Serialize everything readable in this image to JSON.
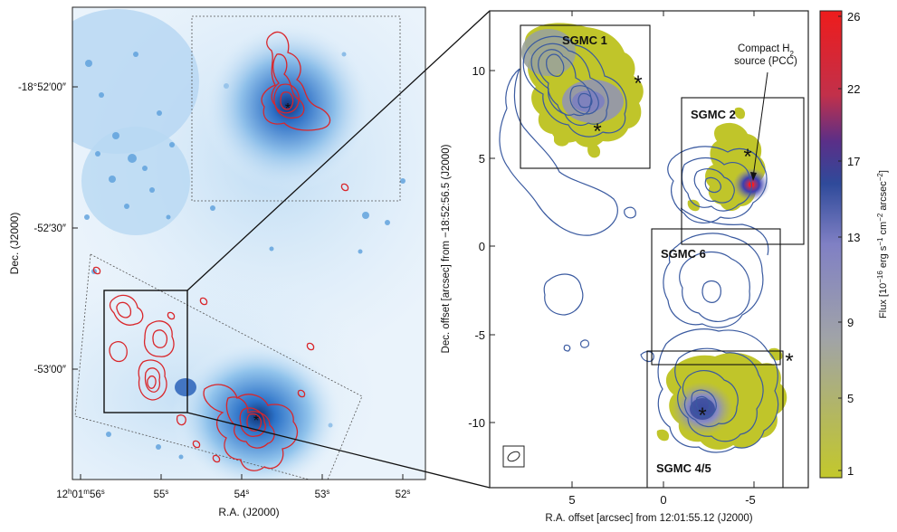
{
  "left_panel": {
    "dec_label": "Dec. (J2000)",
    "ra_label": "R.A. (J2000)",
    "dec_ticks": [
      "-18°52′00″",
      "-52′30″",
      "-53′00″"
    ],
    "ra_ticks": [
      {
        "h": "12",
        "hs": "h",
        "m": "01",
        "ms": "m",
        "s": "56",
        "ss": "s"
      },
      {
        "s": "55",
        "ss": "s"
      },
      {
        "s": "54",
        "ss": "s"
      },
      {
        "s": "53",
        "ss": "s"
      },
      {
        "s": "52",
        "ss": "s"
      }
    ]
  },
  "right_panel": {
    "ylabel": "Dec. offset [arcsec] from −18:52:56.5 (J2000)",
    "xlabel": "R.A. offset [arcsec] from 12:01:55.12 (J2000)",
    "x_ticks": [
      "5",
      "0",
      "-5"
    ],
    "y_ticks": [
      "10",
      "5",
      "0",
      "-5",
      "-10"
    ],
    "boxes": [
      "SGMC 1",
      "SGMC 2",
      "SGMC 6",
      "SGMC 4/5"
    ],
    "annotation_line1": "Compact H",
    "annotation_sub": "2",
    "annotation_line2": "source (PCC)"
  },
  "colorbar": {
    "ticks": [
      "26",
      "22",
      "17",
      "13",
      "9",
      "5",
      "1"
    ],
    "label": "Flux [10",
    "label_exp1": "−16",
    "label_mid": " erg s",
    "label_exp2": "−1",
    "label_mid2": " cm",
    "label_exp3": "−2",
    "label_mid3": " arcsec",
    "label_exp4": "−2",
    "label_end": "]",
    "colors": [
      "#c3c82c",
      "#a0a59a",
      "#8585c2",
      "#3a4f9e",
      "#d83a3a",
      "#ee1c1c"
    ]
  },
  "colors": {
    "contour_red": "#d9262b",
    "contour_blue": "#3a5aa0",
    "emission_yellow": "#c0c52a"
  }
}
